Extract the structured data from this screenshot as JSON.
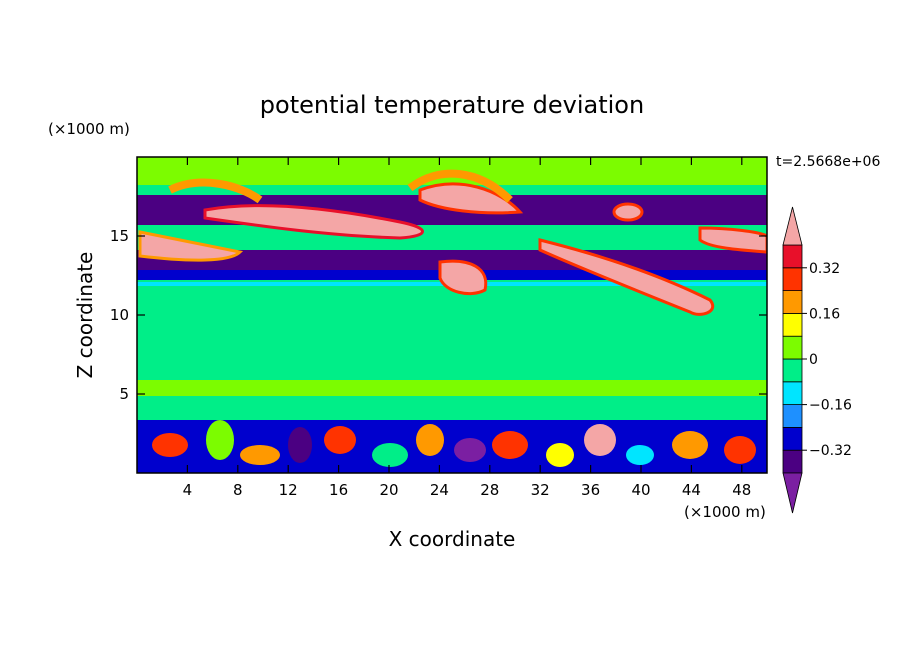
{
  "chart_data": {
    "type": "heatmap",
    "title": "potential temperature deviation",
    "xlabel": "X coordinate",
    "ylabel": "Z coordinate",
    "x_units": "(×1000 m)",
    "y_units": "(×1000 m)",
    "time_label": "t=2.5668e+06",
    "xlim": [
      0,
      50
    ],
    "ylim": [
      0,
      20
    ],
    "x_ticks": [
      "4",
      "8",
      "12",
      "16",
      "20",
      "24",
      "28",
      "32",
      "36",
      "40",
      "44",
      "48"
    ],
    "y_ticks": [
      "5",
      "10",
      "15"
    ],
    "colorbar": {
      "labels": [
        "0.32",
        "0.16",
        "0",
        "−0.16",
        "−0.32"
      ],
      "levels": [
        -0.4,
        -0.32,
        -0.24,
        -0.16,
        -0.08,
        0,
        0.08,
        0.16,
        0.24,
        0.32,
        0.4
      ],
      "colors": [
        "#7b1fa2",
        "#4b0082",
        "#0000cd",
        "#1e90ff",
        "#00e5ff",
        "#00ee88",
        "#7cfc00",
        "#ffff00",
        "#ff9900",
        "#ff3300",
        "#e8102a",
        "#f4a6a6"
      ],
      "extend": "both"
    }
  }
}
